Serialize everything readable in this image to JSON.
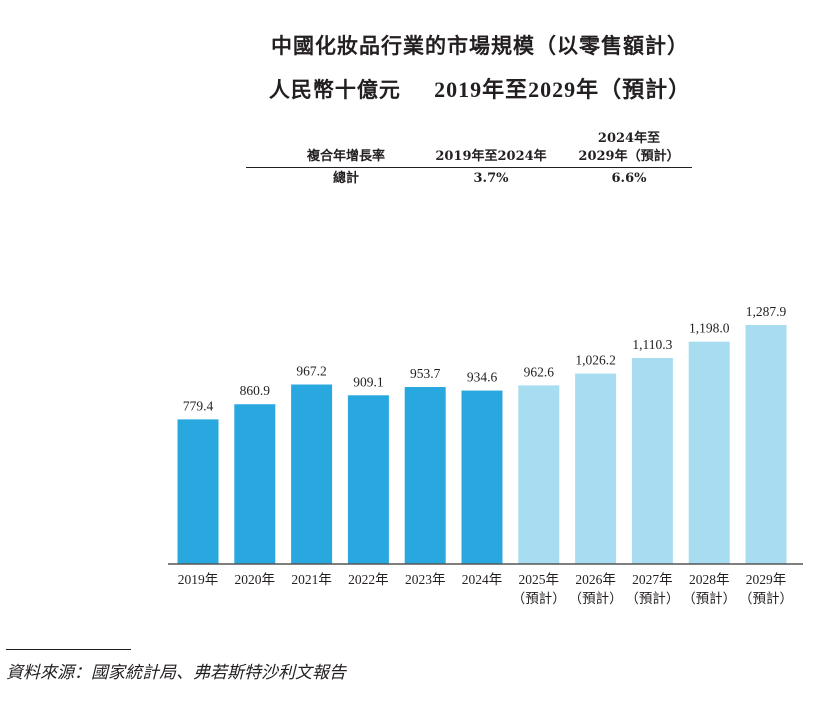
{
  "title_line1": "中國化妝品行業的市場規模（以零售額計）",
  "title_line2_unit": "人民幣十億元",
  "title_line2_period": "2019年至2029年（預計）",
  "cagr_table": {
    "header_label": "複合年增長率",
    "col1_header": "2019年至2024年",
    "col2_header_line1": "2024年至",
    "col2_header_line2": "2029年（預計）",
    "row_label": "總計",
    "col1_value": "3.7%",
    "col2_value": "6.6%"
  },
  "chart_data": {
    "type": "bar",
    "categories": [
      "2019年",
      "2020年",
      "2021年",
      "2022年",
      "2023年",
      "2024年",
      "2025年",
      "2026年",
      "2027年",
      "2028年",
      "2029年"
    ],
    "category_sublabels": [
      "",
      "",
      "",
      "",
      "",
      "",
      "（預計）",
      "（預計）",
      "（預計）",
      "（預計）",
      "（預計）"
    ],
    "values": [
      779.4,
      860.9,
      967.2,
      909.1,
      953.7,
      934.6,
      962.6,
      1026.2,
      1110.3,
      1198.0,
      1287.9
    ],
    "value_labels": [
      "779.4",
      "860.9",
      "967.2",
      "909.1",
      "953.7",
      "934.6",
      "962.6",
      "1,026.2",
      "1,110.3",
      "1,198.0",
      "1,287.9"
    ],
    "forecast": [
      false,
      false,
      false,
      false,
      false,
      false,
      true,
      true,
      true,
      true,
      true
    ],
    "colors": {
      "actual": "#29a8e0",
      "forecast": "#a8dcf0"
    },
    "ylim": [
      0,
      1287.9
    ],
    "grid": false,
    "legend": "none"
  },
  "source": "資料來源：國家統計局、弗若斯特沙利文報告"
}
